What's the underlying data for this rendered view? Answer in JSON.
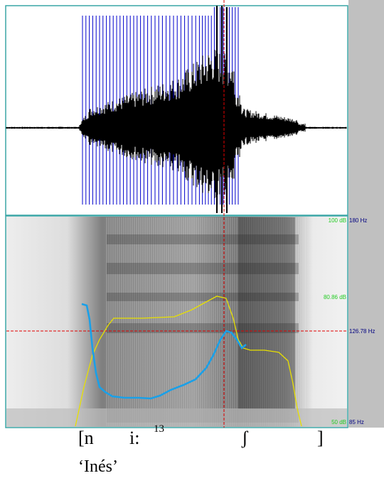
{
  "waveform": {
    "title": "",
    "pulse_marks": "glottal pulses"
  },
  "spectrogram": {
    "intensity_top": "100 dB",
    "intensity_mid": "80.86 dB",
    "intensity_bottom": "50 dB",
    "pitch_top": "180 Hz",
    "pitch_cursor": "126.78 Hz",
    "pitch_bottom": "85 Hz"
  },
  "colors": {
    "pulse": "#0000cc",
    "pitch": "#1aa0e8",
    "intensity": "#e8e000",
    "cursor": "#e00000",
    "panel_border": "#3aa6a6",
    "db_label": "#22cc22",
    "hz_label": "#000080",
    "sidebar": "#c0c0c0"
  },
  "transcription": {
    "open": "[n",
    "vowel": "i:",
    "tone": "13",
    "fric": "ʃ",
    "close": "]",
    "gloss": "‘Inés’"
  },
  "chart_data": {
    "type": "line",
    "ylim_hz": [
      85,
      180
    ],
    "cursor_hz": 126.78,
    "series": []
  }
}
